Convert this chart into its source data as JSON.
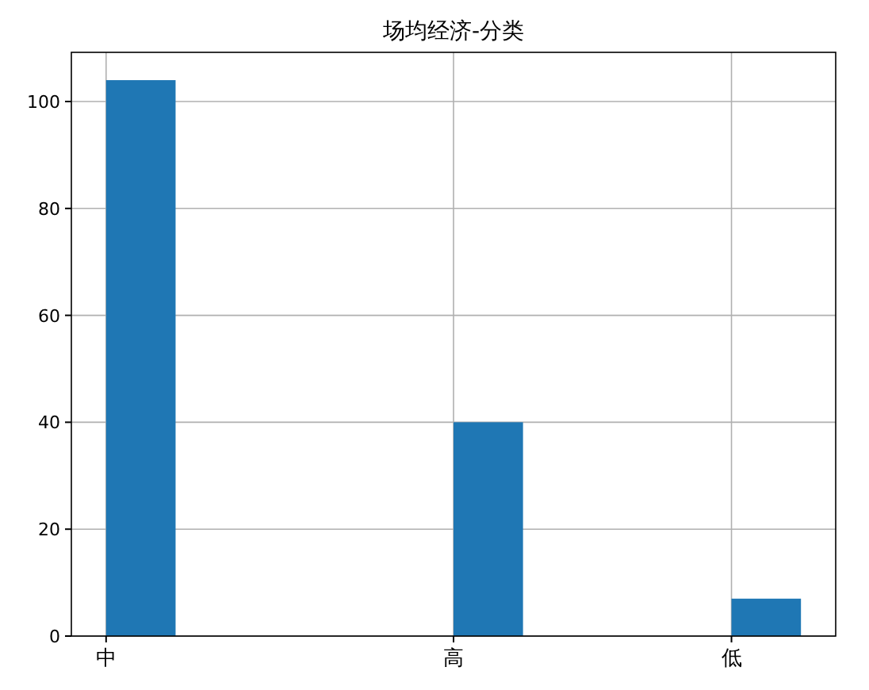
{
  "chart_data": {
    "type": "bar",
    "title": "场均经济-分类",
    "categories": [
      "中",
      null,
      null,
      null,
      null,
      "高",
      null,
      null,
      null,
      "低"
    ],
    "values": [
      104,
      0,
      0,
      0,
      0,
      40,
      0,
      0,
      0,
      7
    ],
    "color": "#1f77b4",
    "ylim": [
      0,
      109.2
    ],
    "yticks": [
      0,
      20,
      40,
      60,
      80,
      100
    ],
    "grid": true
  }
}
